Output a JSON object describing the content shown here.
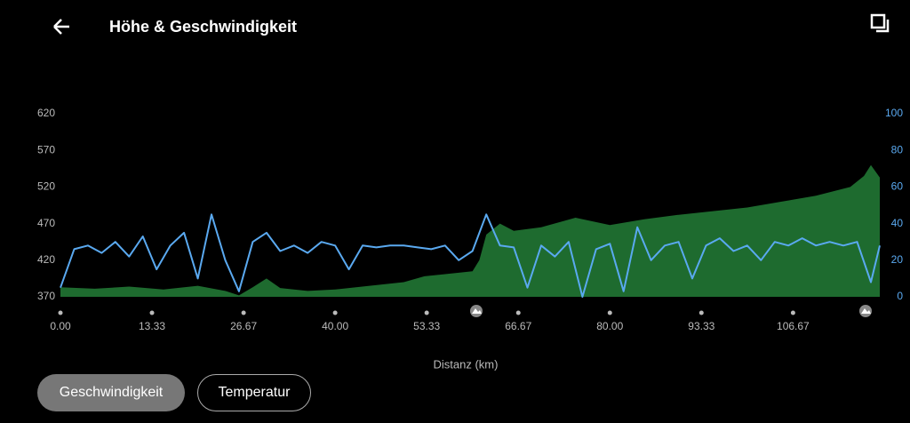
{
  "header": {
    "title": "Höhe & Geschwindigkeit"
  },
  "buttons": [
    "Geschwindigkeit",
    "Temperatur"
  ],
  "chart_data": {
    "type": "line",
    "xlabel": "Distanz (km)",
    "xlim": [
      0,
      119.3
    ],
    "ylim": [
      370,
      620
    ],
    "y2lim": [
      0,
      100
    ],
    "xticks": [
      {
        "value": 0,
        "label": "0.00"
      },
      13.33,
      26.67,
      {
        "value": 40,
        "label": "40.00"
      },
      53.33,
      66.67,
      {
        "value": 80,
        "label": "80.00"
      },
      93.33,
      106.67
    ],
    "yticks": [
      370,
      420,
      470,
      520,
      570,
      620
    ],
    "y2ticks": [
      0,
      20,
      40,
      60,
      80,
      100
    ],
    "series": [
      {
        "type": "area",
        "color": "#1e6b2f",
        "x": [
          0,
          5,
          10,
          15,
          20,
          24,
          26,
          28,
          30,
          32,
          36,
          40,
          45,
          50,
          53,
          56,
          60,
          61,
          62,
          64,
          66,
          70,
          75,
          80,
          85,
          90,
          95,
          100,
          105,
          110,
          115,
          117,
          118,
          119.3
        ],
        "values": [
          383,
          381,
          384,
          380,
          385,
          378,
          372,
          383,
          395,
          382,
          378,
          380,
          385,
          390,
          398,
          401,
          405,
          420,
          455,
          470,
          460,
          465,
          478,
          468,
          476,
          482,
          487,
          492,
          500,
          508,
          520,
          535,
          550,
          533
        ]
      },
      {
        "type": "line",
        "axis": "y2",
        "color": "#5aa9f0",
        "x": [
          0,
          2,
          4,
          6,
          8,
          10,
          12,
          14,
          16,
          18,
          20,
          22,
          24,
          26,
          28,
          30,
          32,
          34,
          36,
          38,
          40,
          42,
          44,
          46,
          48,
          50,
          52,
          54,
          56,
          58,
          60,
          62,
          64,
          66,
          68,
          70,
          72,
          74,
          76,
          78,
          80,
          82,
          84,
          86,
          88,
          90,
          92,
          94,
          96,
          98,
          100,
          102,
          104,
          106,
          108,
          110,
          112,
          114,
          116,
          118,
          119.3
        ],
        "values": [
          5,
          26,
          28,
          24,
          30,
          22,
          33,
          15,
          28,
          35,
          10,
          45,
          20,
          3,
          30,
          35,
          25,
          28,
          24,
          30,
          28,
          15,
          28,
          27,
          28,
          28,
          27,
          26,
          28,
          20,
          25,
          45,
          28,
          27,
          5,
          28,
          22,
          30,
          0,
          26,
          29,
          3,
          38,
          20,
          28,
          30,
          10,
          28,
          32,
          25,
          28,
          20,
          30,
          28,
          32,
          28,
          30,
          28,
          30,
          8,
          28
        ]
      }
    ]
  }
}
